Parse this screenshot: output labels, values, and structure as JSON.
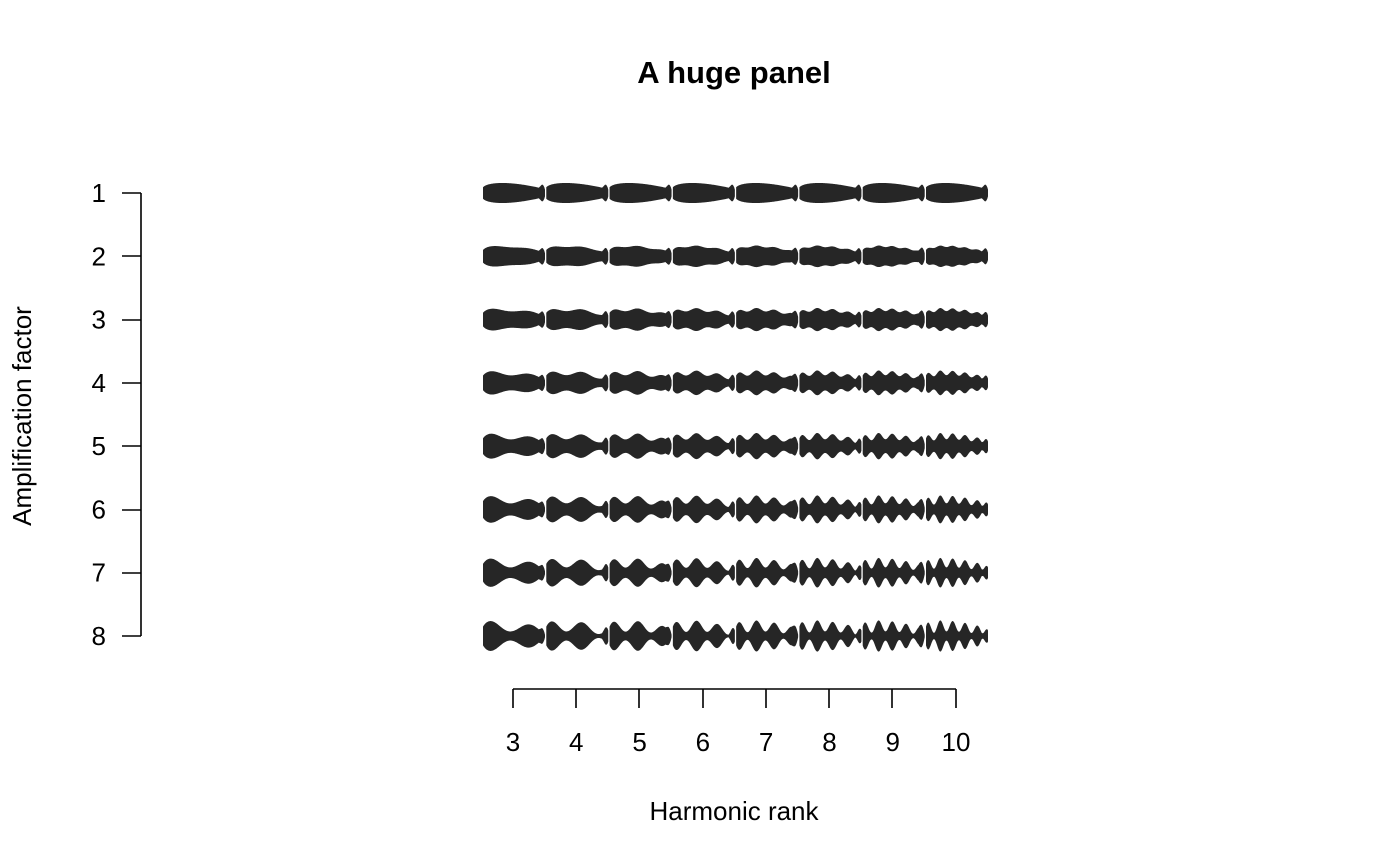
{
  "chart_data": {
    "type": "other",
    "kind": "panel of harmonic-shape glyphs",
    "title": "A huge panel",
    "xlabel": "Harmonic rank",
    "ylabel": "Amplification factor",
    "x_ticks": [
      3,
      4,
      5,
      6,
      7,
      8,
      9,
      10
    ],
    "y_ticks": [
      1,
      2,
      3,
      4,
      5,
      6,
      7,
      8
    ],
    "x_tick_labels": [
      "3",
      "4",
      "5",
      "6",
      "7",
      "8",
      "9",
      "10"
    ],
    "y_tick_labels": [
      "1",
      "2",
      "3",
      "4",
      "5",
      "6",
      "7",
      "8"
    ],
    "y_direction": "top-to-bottom",
    "grid": false,
    "glyph_color": "#262626",
    "description_of_cells": "Each cell at (harmonic rank h, amplification factor a) shows a closed outline whose contour is a base shape plus harmonic h amplified by factor a."
  }
}
